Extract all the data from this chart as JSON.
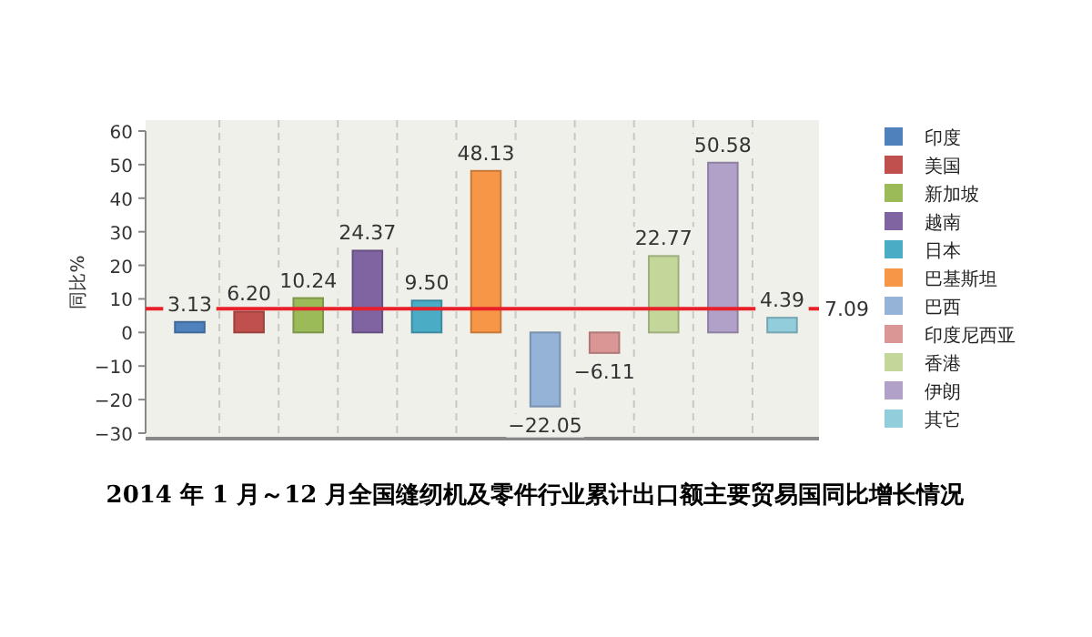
{
  "chart_data": {
    "type": "bar",
    "title": "2014 年 1 月～12 月全国缝纫机及零件行业累计出口额主要贸易国同比增长情况",
    "ylabel": "同比%",
    "categories": [
      null,
      null,
      null,
      null,
      null,
      null,
      null,
      null,
      null,
      null,
      null
    ],
    "series": [
      {
        "name": "印度",
        "color": "#4f81bd",
        "values": [
          3.13,
          null,
          null,
          null,
          null,
          null,
          null,
          null,
          null,
          null,
          null
        ],
        "value_labels": [
          "3.13",
          null,
          null,
          null,
          null,
          null,
          null,
          null,
          null,
          null,
          null
        ]
      },
      {
        "name": "美国",
        "color": "#c0504d",
        "values": [
          null,
          6.2,
          null,
          null,
          null,
          null,
          null,
          null,
          null,
          null,
          null
        ],
        "value_labels": [
          null,
          "6.20",
          null,
          null,
          null,
          null,
          null,
          null,
          null,
          null,
          null
        ]
      },
      {
        "name": "新加坡",
        "color": "#9bbb59",
        "values": [
          null,
          null,
          10.24,
          null,
          null,
          null,
          null,
          null,
          null,
          null,
          null
        ],
        "value_labels": [
          null,
          null,
          "10.24",
          null,
          null,
          null,
          null,
          null,
          null,
          null,
          null
        ]
      },
      {
        "name": "越南",
        "color": "#8064a2",
        "values": [
          null,
          null,
          null,
          24.37,
          null,
          null,
          null,
          null,
          null,
          null,
          null
        ],
        "value_labels": [
          null,
          null,
          null,
          "24.37",
          null,
          null,
          null,
          null,
          null,
          null,
          null
        ]
      },
      {
        "name": "日本",
        "color": "#4bacc6",
        "values": [
          null,
          null,
          null,
          null,
          9.5,
          null,
          null,
          null,
          null,
          null,
          null
        ],
        "value_labels": [
          null,
          null,
          null,
          null,
          "9.50",
          null,
          null,
          null,
          null,
          null,
          null
        ]
      },
      {
        "name": "巴基斯坦",
        "color": "#f79646",
        "values": [
          null,
          null,
          null,
          null,
          null,
          48.13,
          null,
          null,
          null,
          null,
          null
        ],
        "value_labels": [
          null,
          null,
          null,
          null,
          null,
          "48.13",
          null,
          null,
          null,
          null,
          null
        ]
      },
      {
        "name": "巴西",
        "color": "#95b3d7",
        "values": [
          null,
          null,
          null,
          null,
          null,
          null,
          -22.05,
          null,
          null,
          null,
          null
        ],
        "value_labels": [
          null,
          null,
          null,
          null,
          null,
          null,
          "−22.05",
          null,
          null,
          null,
          null
        ]
      },
      {
        "name": "印度尼西亚",
        "color": "#da9694",
        "values": [
          null,
          null,
          null,
          null,
          null,
          null,
          null,
          -6.11,
          null,
          null,
          null
        ],
        "value_labels": [
          null,
          null,
          null,
          null,
          null,
          null,
          null,
          "−6.11",
          null,
          null,
          null
        ]
      },
      {
        "name": "香港",
        "color": "#c4d79b",
        "values": [
          null,
          null,
          null,
          null,
          null,
          null,
          null,
          null,
          22.77,
          null,
          null
        ],
        "value_labels": [
          null,
          null,
          null,
          null,
          null,
          null,
          null,
          null,
          "22.77",
          null,
          null
        ]
      },
      {
        "name": "伊朗",
        "color": "#b1a0c7",
        "values": [
          null,
          null,
          null,
          null,
          null,
          null,
          null,
          null,
          null,
          50.58,
          null
        ],
        "value_labels": [
          null,
          null,
          null,
          null,
          null,
          null,
          null,
          null,
          null,
          "50.58",
          null
        ]
      },
      {
        "name": "其它",
        "color": "#92cddc",
        "values": [
          null,
          null,
          null,
          null,
          null,
          null,
          null,
          null,
          null,
          null,
          4.39
        ],
        "value_labels": [
          null,
          null,
          null,
          null,
          null,
          null,
          null,
          null,
          null,
          null,
          "4.39"
        ]
      }
    ],
    "ylim": [
      -30,
      60
    ],
    "yticks": [
      -30,
      -20,
      -10,
      0,
      10,
      20,
      30,
      40,
      50,
      60
    ],
    "ref_lines": [
      {
        "axis": "y",
        "value": 7.09,
        "label": "7.09",
        "color": "#e8202a"
      }
    ],
    "grid": "x",
    "legend": "right"
  }
}
